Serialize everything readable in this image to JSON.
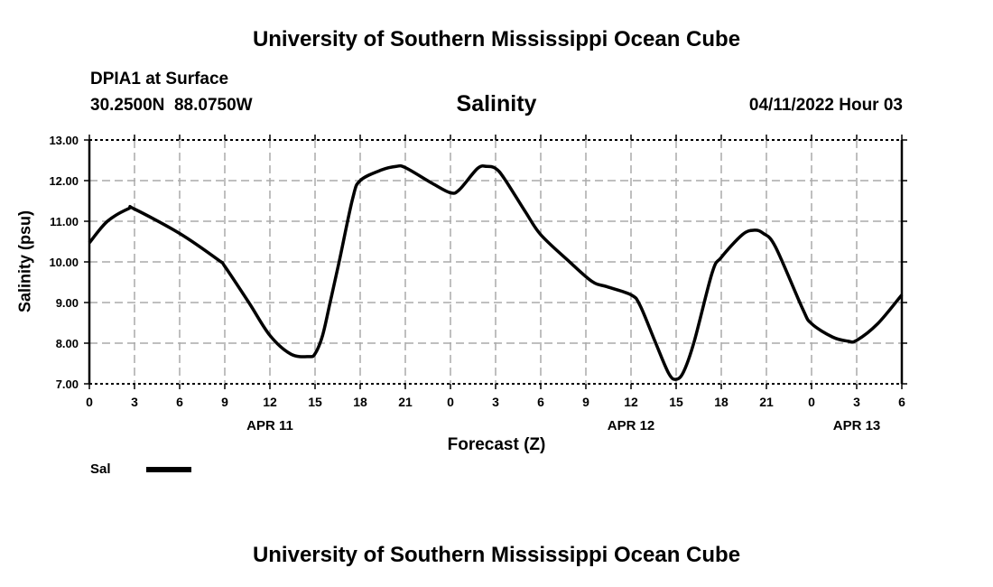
{
  "header": {
    "title": "University of Southern Mississippi Ocean Cube",
    "station": "DPIA1 at Surface",
    "coords": "30.2500N  88.0750W",
    "datetime": "04/11/2022 Hour 03",
    "footer": "University of Southern Mississippi Ocean Cube"
  },
  "chart_data": {
    "type": "line",
    "title": "Salinity",
    "xlabel": "Forecast (Z)",
    "ylabel": "Salinity (psu)",
    "xlim_hours": [
      0,
      54
    ],
    "ylim": [
      7.0,
      13.0
    ],
    "grid": true,
    "y_ticks": [
      "7.00",
      "8.00",
      "9.00",
      "10.00",
      "11.00",
      "12.00",
      "13.00"
    ],
    "x_ticks": [
      "0",
      "3",
      "6",
      "9",
      "12",
      "15",
      "18",
      "21",
      "0",
      "3",
      "6",
      "9",
      "12",
      "15",
      "18",
      "21",
      "0",
      "3",
      "6"
    ],
    "date_labels": [
      {
        "label": "APR 11",
        "hour": 12
      },
      {
        "label": "APR 12",
        "hour": 36
      },
      {
        "label": "APR 13",
        "hour": 51
      }
    ],
    "legend": {
      "placement": "bottom-left",
      "entries": [
        "Sal"
      ]
    },
    "series": [
      {
        "name": "Sal",
        "color": "#000000",
        "x_hours": [
          0,
          1.2,
          2.6,
          3,
          6,
          8.6,
          9,
          10.6,
          12,
          13.4,
          14.6,
          15,
          15.5,
          16,
          16.6,
          17.5,
          18,
          19.4,
          20.4,
          21,
          22.8,
          24,
          24.6,
          25.8,
          26.4,
          27,
          27.6,
          29,
          30,
          31.8,
          33.4,
          34.4,
          36,
          36.6,
          37.6,
          38.5,
          39,
          39.5,
          40.2,
          41.4,
          42,
          43.4,
          44.2,
          44.8,
          45.6,
          47.4,
          48,
          49.4,
          50.4,
          51,
          52.4,
          54
        ],
        "values": [
          10.47,
          11.0,
          11.31,
          11.3,
          10.7,
          10.04,
          9.89,
          9.0,
          8.19,
          7.73,
          7.67,
          7.74,
          8.19,
          9.0,
          10.0,
          11.56,
          12.0,
          12.26,
          12.35,
          12.32,
          11.93,
          11.7,
          11.78,
          12.3,
          12.35,
          12.3,
          12.04,
          11.22,
          10.67,
          10.04,
          9.52,
          9.39,
          9.19,
          8.93,
          8.04,
          7.26,
          7.11,
          7.3,
          8.04,
          9.74,
          10.11,
          10.67,
          10.78,
          10.7,
          10.37,
          8.85,
          8.48,
          8.15,
          8.05,
          8.07,
          8.48,
          9.19
        ]
      }
    ]
  }
}
